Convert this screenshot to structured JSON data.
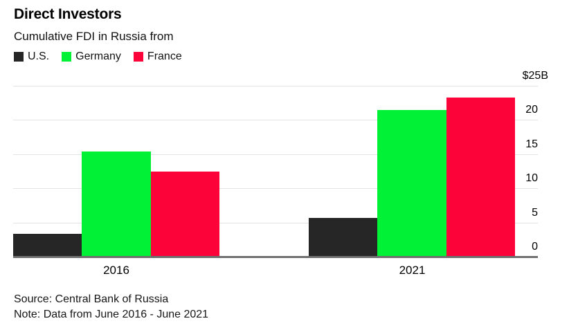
{
  "header": {
    "title": "Direct Investors",
    "subtitle": "Cumulative FDI in Russia from"
  },
  "legend": {
    "items": [
      {
        "label": "U.S.",
        "color": "#262626"
      },
      {
        "label": "Germany",
        "color": "#00f136"
      },
      {
        "label": "France",
        "color": "#fc0439"
      }
    ]
  },
  "chart_data": {
    "type": "bar",
    "title": "Direct Investors",
    "subtitle": "Cumulative FDI in Russia from",
    "categories": [
      "2016",
      "2021"
    ],
    "series": [
      {
        "name": "U.S.",
        "color": "#262626",
        "values": [
          3.3,
          5.7
        ]
      },
      {
        "name": "Germany",
        "color": "#00f136",
        "values": [
          15.4,
          21.5
        ]
      },
      {
        "name": "France",
        "color": "#fc0439",
        "values": [
          12.4,
          23.3
        ]
      }
    ],
    "unit": "$B",
    "ylim": [
      0,
      25
    ],
    "yticks": [
      {
        "value": 0,
        "label": "0"
      },
      {
        "value": 5,
        "label": "5"
      },
      {
        "value": 10,
        "label": "10"
      },
      {
        "value": 15,
        "label": "15"
      },
      {
        "value": 20,
        "label": "20"
      },
      {
        "value": 25,
        "label": "$25B"
      }
    ],
    "grid": "horizontal",
    "legend_position": "top-left",
    "axis_side": "right"
  },
  "footer": {
    "source": "Source: Central Bank of Russia",
    "note": "Note: Data from June 2016 - June 2021"
  }
}
